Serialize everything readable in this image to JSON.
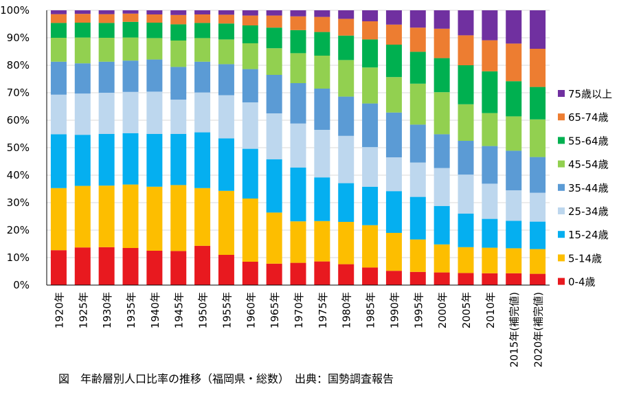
{
  "caption": "図　年齢層別人口比率の推移（福岡県・総数）　出典：国勢調査報告",
  "chart_data": {
    "type": "bar",
    "stacked": true,
    "percent": true,
    "ylim": [
      0,
      100
    ],
    "yticks": [
      "0%",
      "10%",
      "20%",
      "30%",
      "40%",
      "50%",
      "60%",
      "70%",
      "80%",
      "90%",
      "100%"
    ],
    "legend_position": "right",
    "categories": [
      "1920年",
      "1925年",
      "1930年",
      "1935年",
      "1940年",
      "1945年",
      "1950年",
      "1955年",
      "1960年",
      "1965年",
      "1970年",
      "1975年",
      "1980年",
      "1985年",
      "1990年",
      "1995年",
      "2000年",
      "2005年",
      "2010年",
      "2015年(補完値)",
      "2020年(補完値)"
    ],
    "series": [
      {
        "name": "0-4歳",
        "color": "#e8191f",
        "values": [
          12.7,
          13.7,
          13.8,
          13.5,
          12.5,
          12.4,
          14.3,
          11.0,
          8.5,
          7.8,
          8.1,
          8.6,
          7.6,
          6.4,
          5.2,
          4.8,
          4.6,
          4.4,
          4.3,
          4.3,
          4.1
        ]
      },
      {
        "name": "5-14歳",
        "color": "#fdbe00",
        "values": [
          22.6,
          22.4,
          22.4,
          23.1,
          23.3,
          24.0,
          21.0,
          23.3,
          23.0,
          18.6,
          15.1,
          14.7,
          15.4,
          15.4,
          13.8,
          11.8,
          10.2,
          9.4,
          9.3,
          9.1,
          9.0
        ]
      },
      {
        "name": "15-24歳",
        "color": "#05aff0",
        "values": [
          19.6,
          18.6,
          18.8,
          18.7,
          19.2,
          18.6,
          20.3,
          19.1,
          18.1,
          19.4,
          19.6,
          15.9,
          14.1,
          14.0,
          15.2,
          15.5,
          14.0,
          12.2,
          10.5,
          10.0,
          10.0
        ]
      },
      {
        "name": "25-34歳",
        "color": "#bdd7ee",
        "values": [
          14.4,
          15.0,
          15.0,
          15.0,
          15.4,
          12.5,
          14.5,
          15.7,
          16.9,
          16.7,
          16.0,
          17.3,
          17.2,
          14.4,
          12.3,
          12.5,
          13.8,
          14.2,
          12.8,
          11.1,
          10.5
        ]
      },
      {
        "name": "35-44歳",
        "color": "#5b9bd5",
        "values": [
          12.0,
          11.0,
          11.3,
          11.4,
          11.7,
          11.9,
          11.2,
          11.3,
          12.1,
          14.0,
          14.7,
          15.0,
          14.3,
          15.9,
          16.3,
          13.8,
          12.3,
          12.3,
          13.7,
          14.4,
          13.0
        ]
      },
      {
        "name": "45-54歳",
        "color": "#92d050",
        "values": [
          8.7,
          9.4,
          8.7,
          8.4,
          7.8,
          9.6,
          8.6,
          9.0,
          9.4,
          9.7,
          10.9,
          12.0,
          13.3,
          13.1,
          12.9,
          14.9,
          15.3,
          13.3,
          12.0,
          12.5,
          13.7
        ]
      },
      {
        "name": "55-64歳",
        "color": "#00b050",
        "values": [
          5.4,
          5.4,
          5.4,
          5.7,
          5.6,
          5.9,
          5.5,
          5.8,
          6.5,
          7.5,
          8.4,
          8.6,
          8.9,
          10.2,
          11.8,
          11.6,
          12.4,
          14.2,
          15.2,
          12.8,
          11.8
        ]
      },
      {
        "name": "65-74歳",
        "color": "#ed7d31",
        "values": [
          3.2,
          3.2,
          3.2,
          3.0,
          3.0,
          3.4,
          3.1,
          3.2,
          3.6,
          4.4,
          5.0,
          5.5,
          6.1,
          6.6,
          7.3,
          8.8,
          10.7,
          10.9,
          11.3,
          13.7,
          13.9
        ]
      },
      {
        "name": "75歳以上",
        "color": "#7030a0",
        "values": [
          1.4,
          1.3,
          1.4,
          1.2,
          1.5,
          1.7,
          1.5,
          1.6,
          1.9,
          1.9,
          2.2,
          2.4,
          3.1,
          4.0,
          5.2,
          6.3,
          6.7,
          9.1,
          10.9,
          12.1,
          14.0
        ]
      }
    ]
  }
}
